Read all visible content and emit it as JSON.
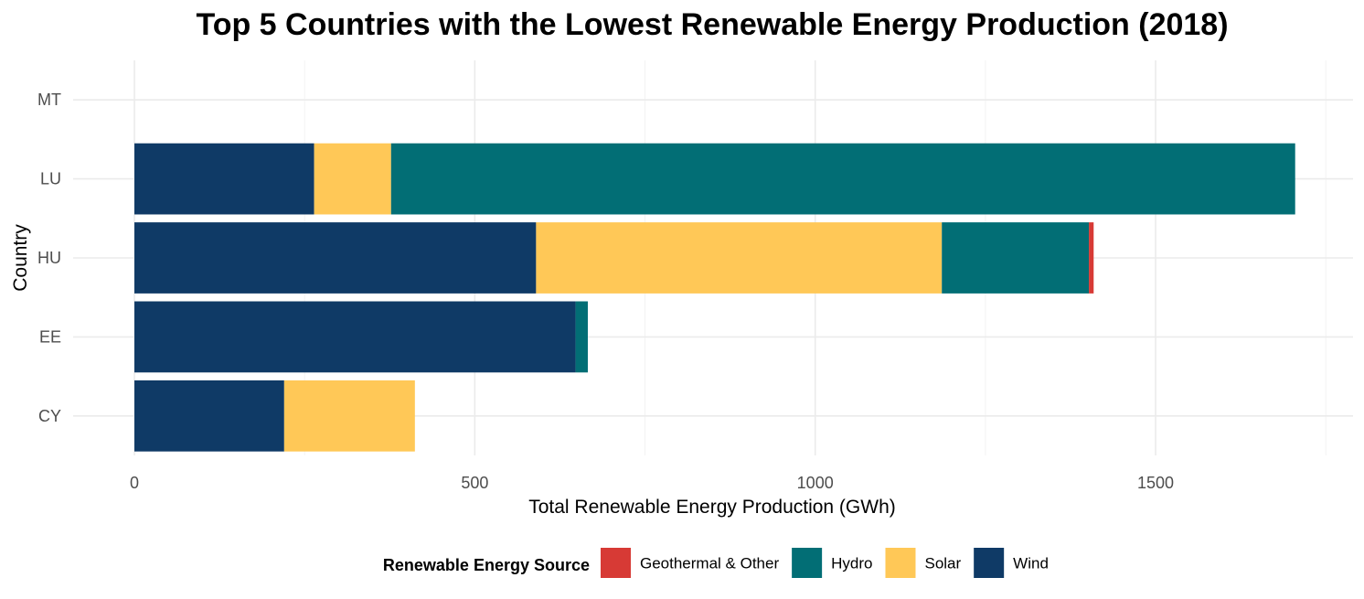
{
  "chart_data": {
    "type": "bar",
    "orientation": "horizontal",
    "stacked": true,
    "title": "Top 5 Countries with the Lowest Renewable Energy Production (2018)",
    "xlabel": "Total Renewable Energy Production (GWh)",
    "ylabel": "Country",
    "xlim": [
      -90,
      1790
    ],
    "x_ticks": [
      0,
      500,
      1000,
      1500
    ],
    "x_tick_labels": [
      "0",
      "500",
      "1000",
      "1500"
    ],
    "categories": [
      "CY",
      "EE",
      "HU",
      "LU",
      "MT"
    ],
    "series": [
      {
        "name": "Wind",
        "color": "#0f3a66",
        "values": [
          220,
          648,
          590,
          264,
          0
        ]
      },
      {
        "name": "Solar",
        "color": "#ffc857",
        "values": [
          192,
          0,
          596,
          113,
          0
        ]
      },
      {
        "name": "Hydro",
        "color": "#026e75",
        "values": [
          0,
          18,
          216,
          1328,
          0
        ]
      },
      {
        "name": "Geothermal & Other",
        "color": "#d73a35",
        "values": [
          0,
          0,
          7,
          0,
          0
        ]
      }
    ],
    "grid": true,
    "legend": {
      "position": "bottom",
      "title": "Renewable Energy Source",
      "order": [
        "Geothermal & Other",
        "Hydro",
        "Solar",
        "Wind"
      ]
    }
  }
}
